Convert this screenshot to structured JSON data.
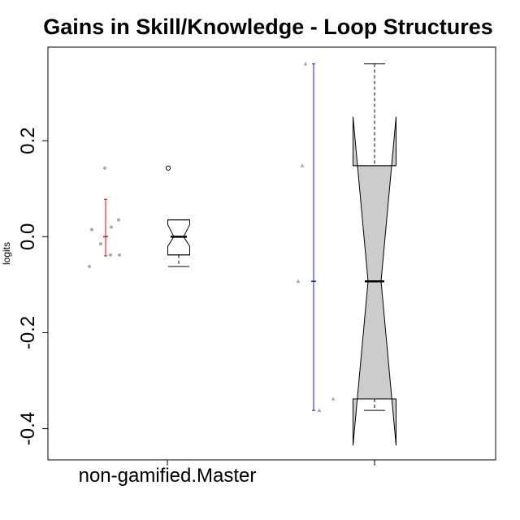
{
  "chart_data": {
    "type": "boxplot",
    "title": "Gains in Skill/Knowledge - Loop Structures",
    "ylabel": "logits",
    "xlabel": "",
    "ylim": [
      -0.465,
      0.395
    ],
    "yticks": [
      -0.4,
      -0.2,
      0.0,
      0.2
    ],
    "ytick_labels": [
      "-0.4",
      "-0.2",
      "0.0",
      "0.2"
    ],
    "xtick_labels": [
      "non-gamified.Master",
      ""
    ],
    "grid": false,
    "legend": "none",
    "groups": [
      {
        "category": "non-gamified.Master",
        "raw_points": [
          -0.062,
          0.015,
          -0.015,
          -0.038,
          0.143,
          0.02,
          0.035,
          -0.038
        ],
        "mean": 0.0,
        "interval": [
          -0.04,
          0.078
        ],
        "interval_color": "#e0001b",
        "point_color": "#a8a8a8",
        "point_shape": "circle",
        "box": {
          "whisker_low": -0.062,
          "q1": -0.038,
          "median": 0.0,
          "q3": 0.035,
          "whisker_high": 0.035,
          "notch_low": -0.02,
          "notch_high": 0.025,
          "outliers": [
            0.143
          ],
          "fill": "#ffffff"
        }
      },
      {
        "category": "",
        "raw_points": [
          0.36,
          0.148,
          -0.093,
          -0.362,
          -0.338
        ],
        "mean": -0.093,
        "interval": [
          -0.362,
          0.36
        ],
        "interval_color": "#1b1bb8",
        "point_color": "#a8a8a8",
        "point_shape": "triangle",
        "box": {
          "whisker_low": -0.362,
          "q1": -0.338,
          "median": -0.093,
          "q3": 0.148,
          "whisker_high": 0.36,
          "notch_low": -0.435,
          "notch_high": 0.25,
          "outliers": [],
          "fill": "#cccccc"
        }
      }
    ]
  }
}
